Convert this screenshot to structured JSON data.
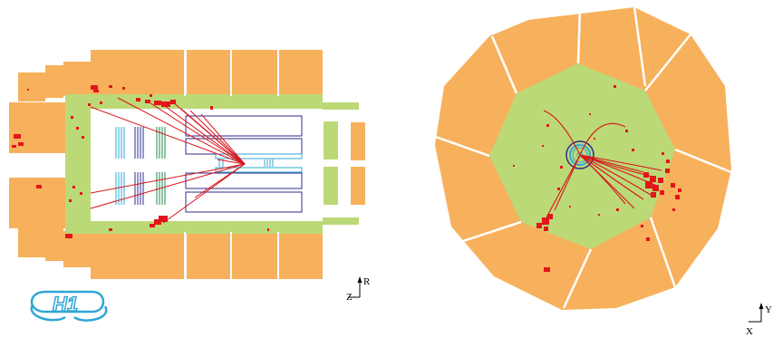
{
  "colors": {
    "calorimeter_outer": "#f7b15c",
    "calorimeter_inner": "#bcd977",
    "track": "#d8141a",
    "energy_deposit": "#e3151b",
    "tracker_cyan": "#32a8d6",
    "tracker_blue": "#2d2d8c",
    "tracker_green": "#1f8a48",
    "background": "#ffffff"
  },
  "side_view": {
    "axis_labels": {
      "horizontal": "Z",
      "vertical": "R"
    }
  },
  "end_view": {
    "axis_labels": {
      "horizontal": "X",
      "vertical": "Y"
    }
  },
  "logo": {
    "text": "H1",
    "icon": "h1-experiment-logo"
  }
}
